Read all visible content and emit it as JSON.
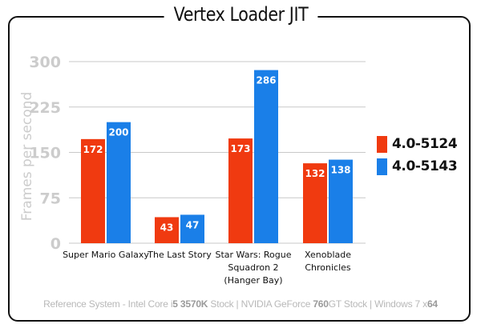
{
  "chart_data": {
    "type": "bar",
    "title": "Vertex Loader JIT",
    "ylabel": "Frames per second",
    "ylim": [
      0,
      300
    ],
    "yticks": [
      0,
      75,
      150,
      225,
      300
    ],
    "categories": [
      [
        "Super Mario Galaxy"
      ],
      [
        "The Last Story"
      ],
      [
        "Star Wars: Rogue",
        "Squadron 2",
        "(Hanger Bay)"
      ],
      [
        "Xenoblade",
        "Chronicles"
      ]
    ],
    "series": [
      {
        "name": "4.0-5124",
        "color": "#f03a10",
        "values": [
          172,
          43,
          173,
          132
        ]
      },
      {
        "name": "4.0-5143",
        "color": "#1a7fe8",
        "values": [
          200,
          47,
          286,
          138
        ]
      }
    ],
    "grid": true,
    "legend": "right"
  },
  "footer": {
    "parts": [
      {
        "text": "Reference System  -  Intel Core i",
        "bold": false
      },
      {
        "text": "5 3570K",
        "bold": true
      },
      {
        "text": " Stock  |  NVIDIA GeForce ",
        "bold": false
      },
      {
        "text": "760",
        "bold": true
      },
      {
        "text": "GT Stock  |  Windows 7 x",
        "bold": false
      },
      {
        "text": "64",
        "bold": true
      }
    ]
  }
}
